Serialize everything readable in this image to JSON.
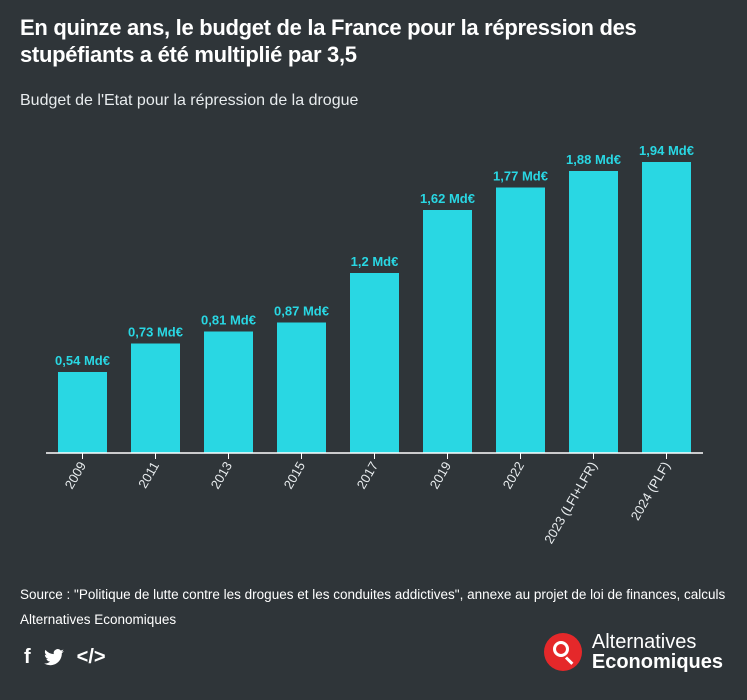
{
  "title": "En quinze ans, le budget de la France pour la répression des stupéfiants a été multiplié par 3,5",
  "subtitle": "Budget de l'Etat pour la répression de la drogue",
  "source": "Source : \"Politique de lutte contre les drogues et les conduites addictives\", annexe au projet de loi de finances, calculs Alternatives Economiques",
  "brand": {
    "line1": "Alternatives",
    "line2": "Economiques"
  },
  "social": {
    "facebook": "f",
    "twitter": "twitter-icon",
    "embed": "</>"
  },
  "colors": {
    "background": "#2f3539",
    "bar": "#29d7e3",
    "label": "#29d7e3",
    "axis": "#ffffff",
    "brand": "#e5282a"
  },
  "chart_data": {
    "type": "bar",
    "categories": [
      "2009",
      "2011",
      "2013",
      "2015",
      "2017",
      "2019",
      "2022",
      "2023 (LFI+LFR)",
      "2024 (PLF)"
    ],
    "values": [
      0.54,
      0.73,
      0.81,
      0.87,
      1.2,
      1.62,
      1.77,
      1.88,
      1.94
    ],
    "data_labels": [
      "0,54 Md€",
      "0,73 Md€",
      "0,81 Md€",
      "0,87 Md€",
      "1,2 Md€",
      "1,62 Md€",
      "1,77 Md€",
      "1,88 Md€",
      "1,94 Md€"
    ],
    "xlabel": "",
    "ylabel": "",
    "ylim": [
      0,
      2.0
    ],
    "grid": false,
    "legend": "none"
  }
}
